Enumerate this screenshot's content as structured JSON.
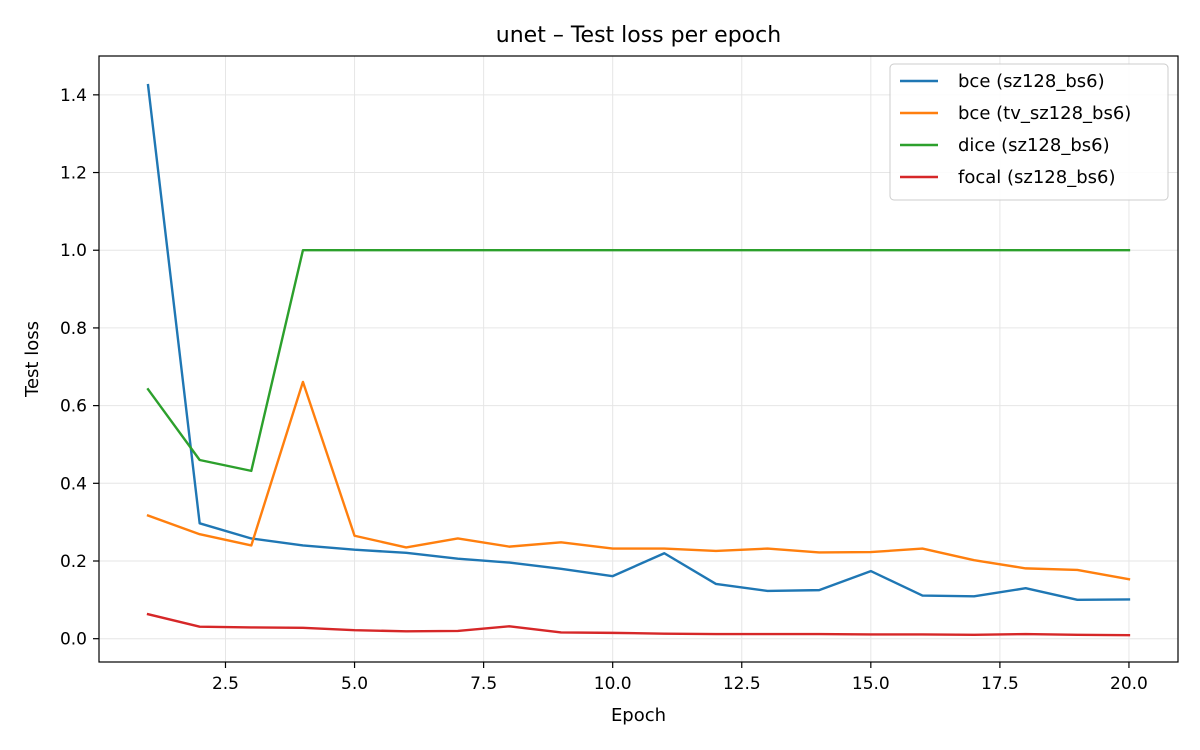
{
  "chart_data": {
    "type": "line",
    "title": "unet – Test loss per epoch",
    "xlabel": "Epoch",
    "ylabel": "Test loss",
    "xlim": [
      0.05,
      20.95
    ],
    "ylim": [
      -0.06,
      1.5
    ],
    "xticks": [
      2.5,
      5.0,
      7.5,
      10.0,
      12.5,
      15.0,
      17.5,
      20.0
    ],
    "xtick_labels": [
      "2.5",
      "5.0",
      "7.5",
      "10.0",
      "12.5",
      "15.0",
      "17.5",
      "20.0"
    ],
    "yticks": [
      0.0,
      0.2,
      0.4,
      0.6,
      0.8,
      1.0,
      1.2,
      1.4
    ],
    "ytick_labels": [
      "0.0",
      "0.2",
      "0.4",
      "0.6",
      "0.8",
      "1.0",
      "1.2",
      "1.4"
    ],
    "grid": true,
    "legend_position": "top-right",
    "x": [
      1,
      2,
      3,
      4,
      5,
      6,
      7,
      8,
      9,
      10,
      11,
      12,
      13,
      14,
      15,
      16,
      17,
      18,
      19,
      20
    ],
    "series": [
      {
        "name": "bce (sz128_bs6)",
        "color": "#1f77b4",
        "values": [
          1.425,
          0.297,
          0.258,
          0.24,
          0.229,
          0.221,
          0.206,
          0.196,
          0.18,
          0.161,
          0.22,
          0.141,
          0.123,
          0.125,
          0.174,
          0.111,
          0.109,
          0.13,
          0.1,
          0.101
        ]
      },
      {
        "name": "bce (tv_sz128_bs6)",
        "color": "#ff7f0e",
        "values": [
          0.317,
          0.269,
          0.24,
          0.661,
          0.265,
          0.235,
          0.258,
          0.237,
          0.248,
          0.232,
          0.232,
          0.226,
          0.232,
          0.222,
          0.223,
          0.232,
          0.202,
          0.181,
          0.177,
          0.153
        ]
      },
      {
        "name": "dice (sz128_bs6)",
        "color": "#2ca02c",
        "values": [
          0.642,
          0.46,
          0.432,
          1.0,
          1.0,
          1.0,
          1.0,
          1.0,
          1.0,
          1.0,
          1.0,
          1.0,
          1.0,
          1.0,
          1.0,
          1.0,
          1.0,
          1.0,
          1.0,
          1.0
        ]
      },
      {
        "name": "focal (sz128_bs6)",
        "color": "#d62728",
        "values": [
          0.063,
          0.031,
          0.029,
          0.028,
          0.022,
          0.019,
          0.02,
          0.032,
          0.016,
          0.015,
          0.013,
          0.012,
          0.012,
          0.012,
          0.011,
          0.011,
          0.01,
          0.012,
          0.01,
          0.009
        ]
      }
    ]
  }
}
